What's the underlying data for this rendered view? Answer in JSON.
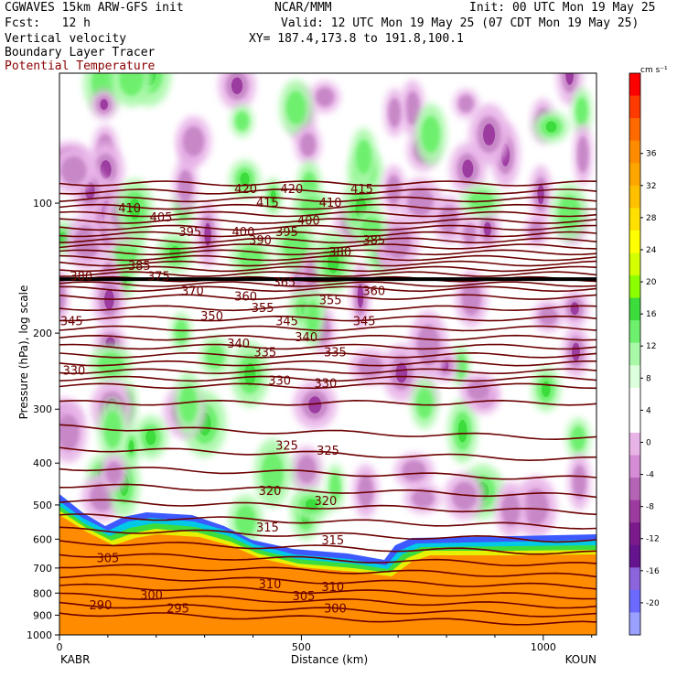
{
  "header": {
    "model": "CGWAVES 15km ARW-GFS init",
    "fcst": "Fcst:   12 h",
    "producer": "NCAR/MMM",
    "init": "Init: 00 UTC Mon 19 May 25",
    "valid": "Valid: 12 UTC Mon 19 May 25 (07 CDT Mon 19 May 25)",
    "xy": "XY= 187.4,173.8 to 191.8,100.1",
    "field1": "Vertical velocity",
    "field2": "Boundary Layer Tracer",
    "field3": "Potential Temperature"
  },
  "colors": {
    "theta_contour": "#6b0000",
    "terrain_fill": "#ff8c00"
  },
  "chart_data": {
    "type": "heatmap",
    "xlabel": "Distance (km)",
    "ylabel": "Pressure (hPa), log scale",
    "x_ticks": [
      "0",
      "500",
      "1000"
    ],
    "x_tick_values": [
      0,
      500,
      1000
    ],
    "xlim": [
      0,
      1110
    ],
    "y_ticks": [
      "100",
      "200",
      "300",
      "400",
      "500",
      "600",
      "700",
      "800",
      "900",
      "1000"
    ],
    "y_tick_values": [
      100,
      200,
      300,
      400,
      500,
      600,
      700,
      800,
      900,
      1000
    ],
    "ylim": [
      1000,
      50
    ],
    "y_scale": "log",
    "left_station": "KABR",
    "right_station": "KOUN",
    "colorbar": {
      "units": "cm s⁻¹",
      "tick_labels": [
        "36",
        "32",
        "28",
        "24",
        "20",
        "16",
        "12",
        "8",
        "4",
        "0",
        "-4",
        "-8",
        "-12",
        "-16",
        "-20"
      ],
      "tick_values": [
        36,
        32,
        28,
        24,
        20,
        16,
        12,
        8,
        4,
        0,
        -4,
        -8,
        -12,
        -16,
        -20
      ],
      "colors": [
        "#ff0000",
        "#ff3a00",
        "#ff6a00",
        "#ff8c00",
        "#ffa500",
        "#ffc000",
        "#ffe000",
        "#ffff00",
        "#d4ff00",
        "#8cff00",
        "#3cdc3c",
        "#6ef06e",
        "#a8f8a8",
        "#dcffdc",
        "#ffffff",
        "#ffffff",
        "#e8b4e8",
        "#d48cd4",
        "#b464b4",
        "#9c3ca0",
        "#7a1a8c",
        "#64148c",
        "#8c64dc",
        "#6a6aff",
        "#9aa0ff"
      ]
    },
    "theta_labels": [
      {
        "text": "420",
        "x": 385,
        "p": 93
      },
      {
        "text": "420",
        "x": 480,
        "p": 93
      },
      {
        "text": "415",
        "x": 430,
        "p": 100
      },
      {
        "text": "415",
        "x": 625,
        "p": 93
      },
      {
        "text": "410",
        "x": 145,
        "p": 103
      },
      {
        "text": "410",
        "x": 560,
        "p": 100
      },
      {
        "text": "405",
        "x": 210,
        "p": 108
      },
      {
        "text": "400",
        "x": 380,
        "p": 117
      },
      {
        "text": "400",
        "x": 515,
        "p": 110
      },
      {
        "text": "395",
        "x": 270,
        "p": 117
      },
      {
        "text": "395",
        "x": 470,
        "p": 117
      },
      {
        "text": "390",
        "x": 415,
        "p": 122
      },
      {
        "text": "385",
        "x": 165,
        "p": 140
      },
      {
        "text": "385",
        "x": 650,
        "p": 122
      },
      {
        "text": "380",
        "x": 580,
        "p": 130
      },
      {
        "text": "380",
        "x": 45,
        "p": 148
      },
      {
        "text": "375",
        "x": 205,
        "p": 148
      },
      {
        "text": "370",
        "x": 275,
        "p": 160
      },
      {
        "text": "365",
        "x": 465,
        "p": 153
      },
      {
        "text": "360",
        "x": 385,
        "p": 165
      },
      {
        "text": "360",
        "x": 650,
        "p": 160
      },
      {
        "text": "355",
        "x": 420,
        "p": 175
      },
      {
        "text": "355",
        "x": 560,
        "p": 168
      },
      {
        "text": "350",
        "x": 315,
        "p": 183
      },
      {
        "text": "345",
        "x": 25,
        "p": 188
      },
      {
        "text": "345",
        "x": 470,
        "p": 188
      },
      {
        "text": "345",
        "x": 630,
        "p": 188
      },
      {
        "text": "340",
        "x": 370,
        "p": 212
      },
      {
        "text": "340",
        "x": 510,
        "p": 205
      },
      {
        "text": "335",
        "x": 425,
        "p": 222
      },
      {
        "text": "335",
        "x": 570,
        "p": 222
      },
      {
        "text": "330",
        "x": 30,
        "p": 245
      },
      {
        "text": "330",
        "x": 455,
        "p": 258
      },
      {
        "text": "330",
        "x": 550,
        "p": 262
      },
      {
        "text": "325",
        "x": 470,
        "p": 365
      },
      {
        "text": "325",
        "x": 555,
        "p": 375
      },
      {
        "text": "320",
        "x": 435,
        "p": 465
      },
      {
        "text": "320",
        "x": 550,
        "p": 490
      },
      {
        "text": "315",
        "x": 430,
        "p": 565
      },
      {
        "text": "315",
        "x": 565,
        "p": 605
      },
      {
        "text": "310",
        "x": 435,
        "p": 765
      },
      {
        "text": "310",
        "x": 565,
        "p": 775
      },
      {
        "text": "305",
        "x": 100,
        "p": 665
      },
      {
        "text": "305",
        "x": 505,
        "p": 815
      },
      {
        "text": "300",
        "x": 190,
        "p": 810
      },
      {
        "text": "300",
        "x": 570,
        "p": 870
      },
      {
        "text": "295",
        "x": 245,
        "p": 870
      },
      {
        "text": "290",
        "x": 85,
        "p": 855
      }
    ]
  }
}
